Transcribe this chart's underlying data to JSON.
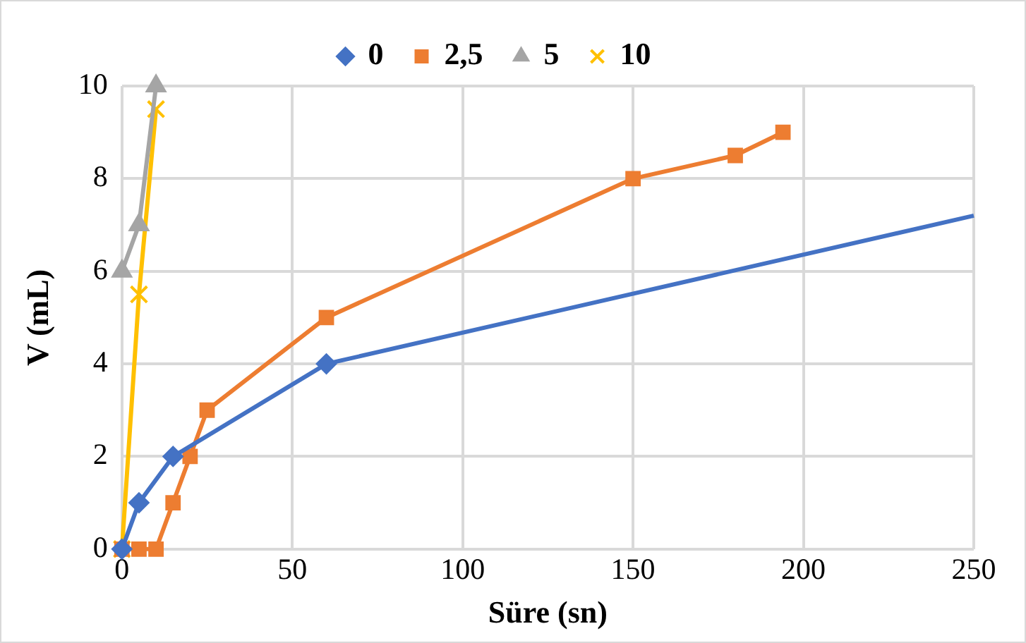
{
  "chart_data": {
    "type": "line",
    "xlabel": "Süre (sn)",
    "ylabel": "V (mL)",
    "xlim": [
      0,
      250
    ],
    "xticks": [
      0,
      50,
      100,
      150,
      200,
      250
    ],
    "ylim": [
      0,
      10
    ],
    "yticks": [
      0,
      2,
      4,
      6,
      8,
      10
    ],
    "grid": true,
    "legend": "top",
    "series": [
      {
        "name": "0",
        "color": "#4472c4",
        "marker": "diamond",
        "x": [
          0,
          5,
          15,
          60,
          250
        ],
        "values": [
          0,
          1,
          2,
          4,
          7.2
        ]
      },
      {
        "name": "2,5",
        "color": "#ed7d31",
        "marker": "square",
        "x": [
          0,
          5,
          10,
          15,
          20,
          25,
          60,
          150,
          180,
          194
        ],
        "values": [
          0,
          0,
          0,
          1,
          2,
          3,
          5,
          8,
          8.5,
          9
        ]
      },
      {
        "name": "5",
        "color": "#a5a5a5",
        "marker": "triangle",
        "x": [
          0,
          5,
          10
        ],
        "values": [
          6,
          7,
          10
        ]
      },
      {
        "name": "10",
        "color": "#ffc000",
        "marker": "cross",
        "x": [
          0,
          5,
          10
        ],
        "values": [
          0,
          5.5,
          9.5
        ]
      }
    ]
  }
}
